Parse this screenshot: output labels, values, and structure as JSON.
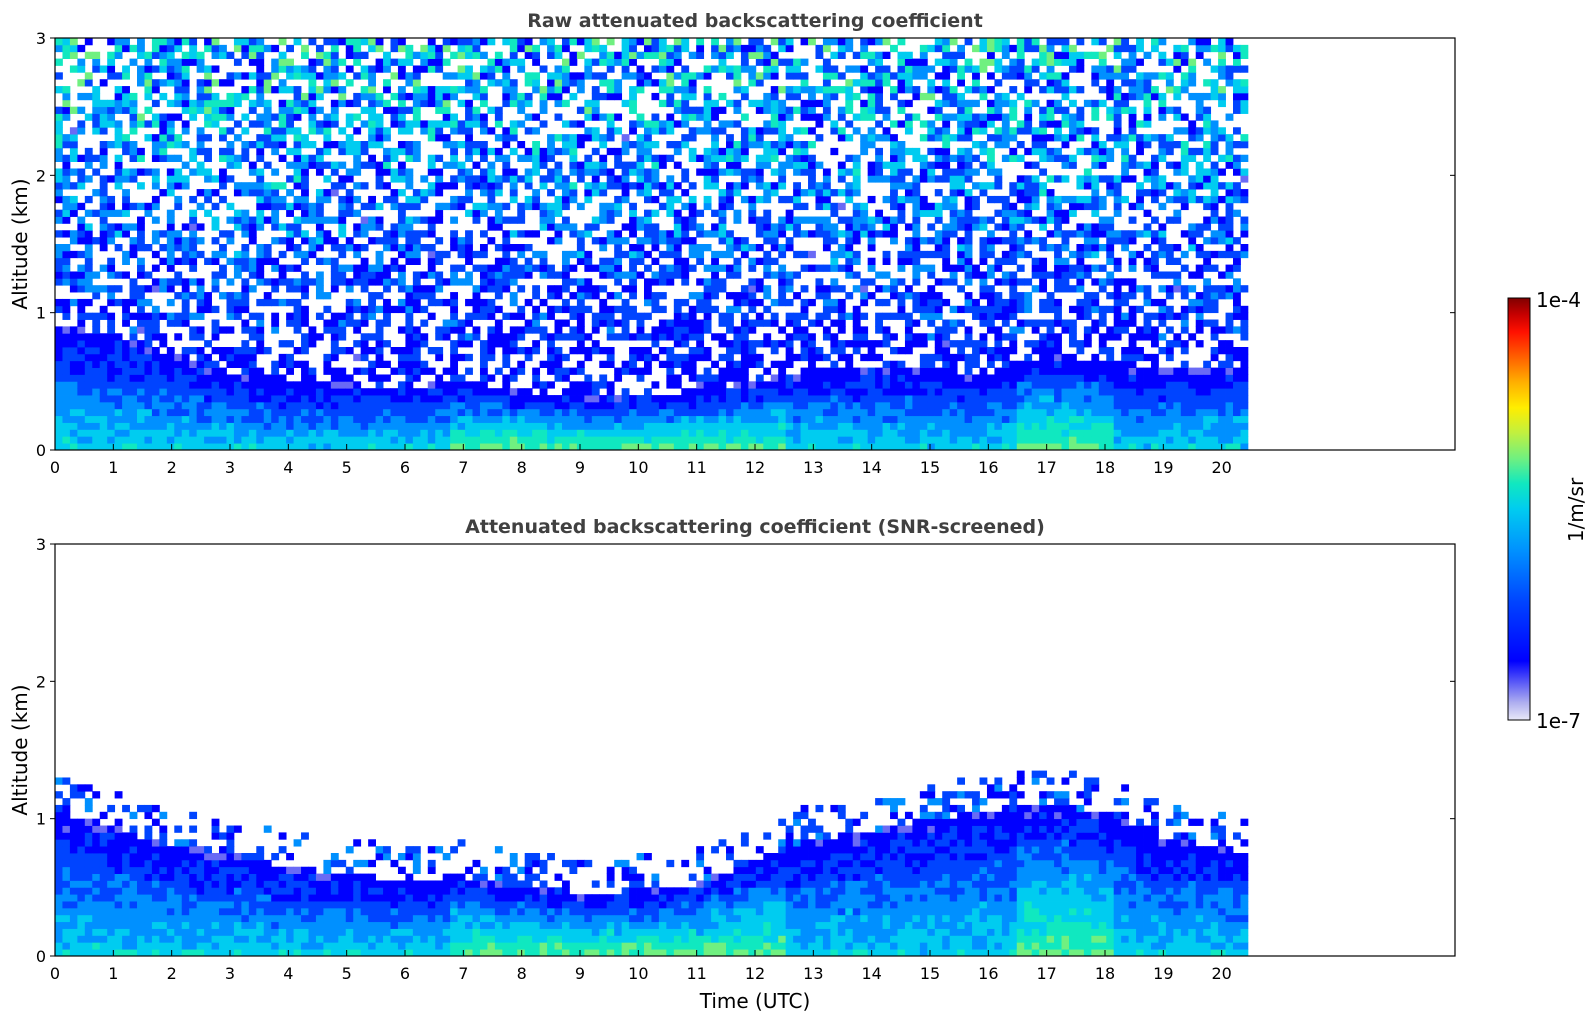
{
  "chart_data": [
    {
      "type": "heatmap",
      "title": "Raw attenuated backscattering coefficient",
      "xlabel": "",
      "ylabel": "Altitude (km)",
      "xlim": [
        0,
        24
      ],
      "ylim": [
        0,
        3
      ],
      "data_xrange": [
        0,
        20.45
      ],
      "xticks": [
        0,
        1,
        2,
        3,
        4,
        5,
        6,
        7,
        8,
        9,
        10,
        11,
        12,
        13,
        14,
        15,
        16,
        17,
        18,
        19,
        20
      ],
      "yticks": [
        0,
        1,
        2,
        3
      ],
      "screened": false,
      "noise_fill": true,
      "boundary_layer_top_km": [
        [
          0,
          0.9
        ],
        [
          1,
          0.85
        ],
        [
          2,
          0.7
        ],
        [
          3,
          0.55
        ],
        [
          4,
          0.5
        ],
        [
          5,
          0.48
        ],
        [
          6,
          0.46
        ],
        [
          7,
          0.5
        ],
        [
          8,
          0.42
        ],
        [
          9,
          0.38
        ],
        [
          10,
          0.4
        ],
        [
          11,
          0.42
        ],
        [
          12,
          0.5
        ],
        [
          13,
          0.6
        ],
        [
          14,
          0.62
        ],
        [
          15,
          0.6
        ],
        [
          16,
          0.55
        ],
        [
          17,
          0.7
        ],
        [
          18,
          0.65
        ],
        [
          19,
          0.6
        ],
        [
          20,
          0.6
        ],
        [
          20.45,
          0.6
        ]
      ]
    },
    {
      "type": "heatmap",
      "title": "Attenuated backscattering coefficient (SNR-screened)",
      "xlabel": "Time (UTC)",
      "ylabel": "Altitude (km)",
      "xlim": [
        0,
        24
      ],
      "ylim": [
        0,
        3
      ],
      "data_xrange": [
        0,
        20.45
      ],
      "xticks": [
        0,
        1,
        2,
        3,
        4,
        5,
        6,
        7,
        8,
        9,
        10,
        11,
        12,
        13,
        14,
        15,
        16,
        17,
        18,
        19,
        20
      ],
      "yticks": [
        0,
        1,
        2,
        3
      ],
      "screened": true,
      "noise_fill": false,
      "boundary_layer_top_km": [
        [
          0,
          1.05
        ],
        [
          0.5,
          1.0
        ],
        [
          1,
          0.95
        ],
        [
          1.5,
          0.85
        ],
        [
          2,
          0.8
        ],
        [
          3,
          0.75
        ],
        [
          4,
          0.65
        ],
        [
          5,
          0.6
        ],
        [
          6,
          0.55
        ],
        [
          7,
          0.58
        ],
        [
          8,
          0.5
        ],
        [
          9,
          0.45
        ],
        [
          10,
          0.48
        ],
        [
          11,
          0.52
        ],
        [
          12,
          0.7
        ],
        [
          13,
          0.85
        ],
        [
          14,
          0.9
        ],
        [
          15,
          1.0
        ],
        [
          16,
          1.05
        ],
        [
          17,
          1.1
        ],
        [
          18,
          1.05
        ],
        [
          19,
          0.85
        ],
        [
          20,
          0.8
        ],
        [
          20.45,
          0.75
        ]
      ]
    }
  ],
  "colorbar": {
    "label": "1/m/sr",
    "max_label": "1e-4",
    "min_label": "1e-7",
    "colormap": [
      "#e8e8f8",
      "#b0b0f0",
      "#6a6af5",
      "#0000ff",
      "#0044ff",
      "#0090ff",
      "#00ccf0",
      "#10e8c0",
      "#70f080",
      "#c0f040",
      "#ffee00",
      "#ffb000",
      "#ff6000",
      "#ff1000",
      "#c80000",
      "#800000"
    ]
  }
}
